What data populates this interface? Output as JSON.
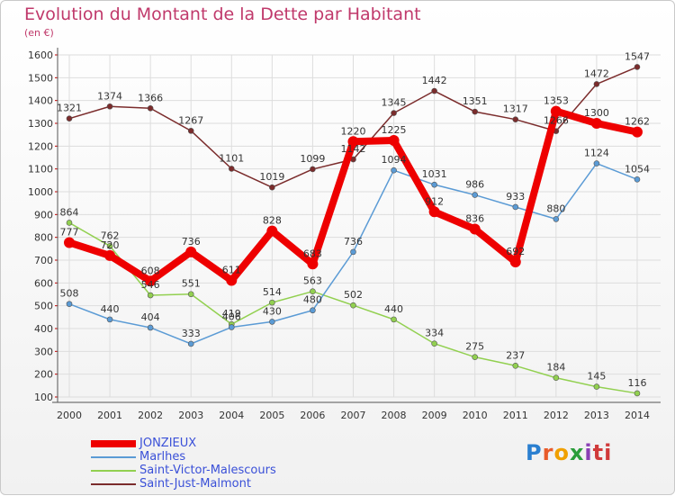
{
  "header": {
    "title": "Evolution du Montant de la Dette par Habitant",
    "subtitle": "(en €)"
  },
  "logo": {
    "text": "Proxiti"
  },
  "chart_data": {
    "type": "line",
    "title": "Evolution du Montant de la Dette par Habitant",
    "subtitle": "(en €)",
    "xlabel": "",
    "ylabel": "",
    "x": [
      "2000",
      "2001",
      "2002",
      "2003",
      "2004",
      "2005",
      "2006",
      "2007",
      "2008",
      "2009",
      "2010",
      "2011",
      "2012",
      "2013",
      "2014"
    ],
    "ylim": [
      100,
      1600
    ],
    "yticks": [
      100,
      200,
      300,
      400,
      500,
      600,
      700,
      800,
      900,
      1000,
      1100,
      1200,
      1300,
      1400,
      1500,
      1600
    ],
    "grid": true,
    "legend_position": "bottom-left",
    "series": [
      {
        "name": "JONZIEUX",
        "color": "#ee0000",
        "values": [
          777,
          720,
          608,
          736,
          611,
          828,
          683,
          1220,
          1225,
          912,
          836,
          692,
          1353,
          1300,
          1262
        ]
      },
      {
        "name": "Marlhes",
        "color": "#5b9bd5",
        "values": [
          508,
          440,
          404,
          333,
          406,
          430,
          480,
          736,
          1094,
          1031,
          986,
          933,
          880,
          1124,
          1054
        ]
      },
      {
        "name": "Saint-Victor-Malescours",
        "color": "#92d050",
        "values": [
          864,
          762,
          546,
          551,
          419,
          514,
          563,
          502,
          440,
          334,
          275,
          237,
          184,
          145,
          116
        ]
      },
      {
        "name": "Saint-Just-Malmont",
        "color": "#7b2c2c",
        "values": [
          1321,
          1374,
          1366,
          1267,
          1101,
          1019,
          1099,
          1142,
          1345,
          1442,
          1351,
          1317,
          1266,
          1472,
          1547
        ]
      }
    ]
  }
}
